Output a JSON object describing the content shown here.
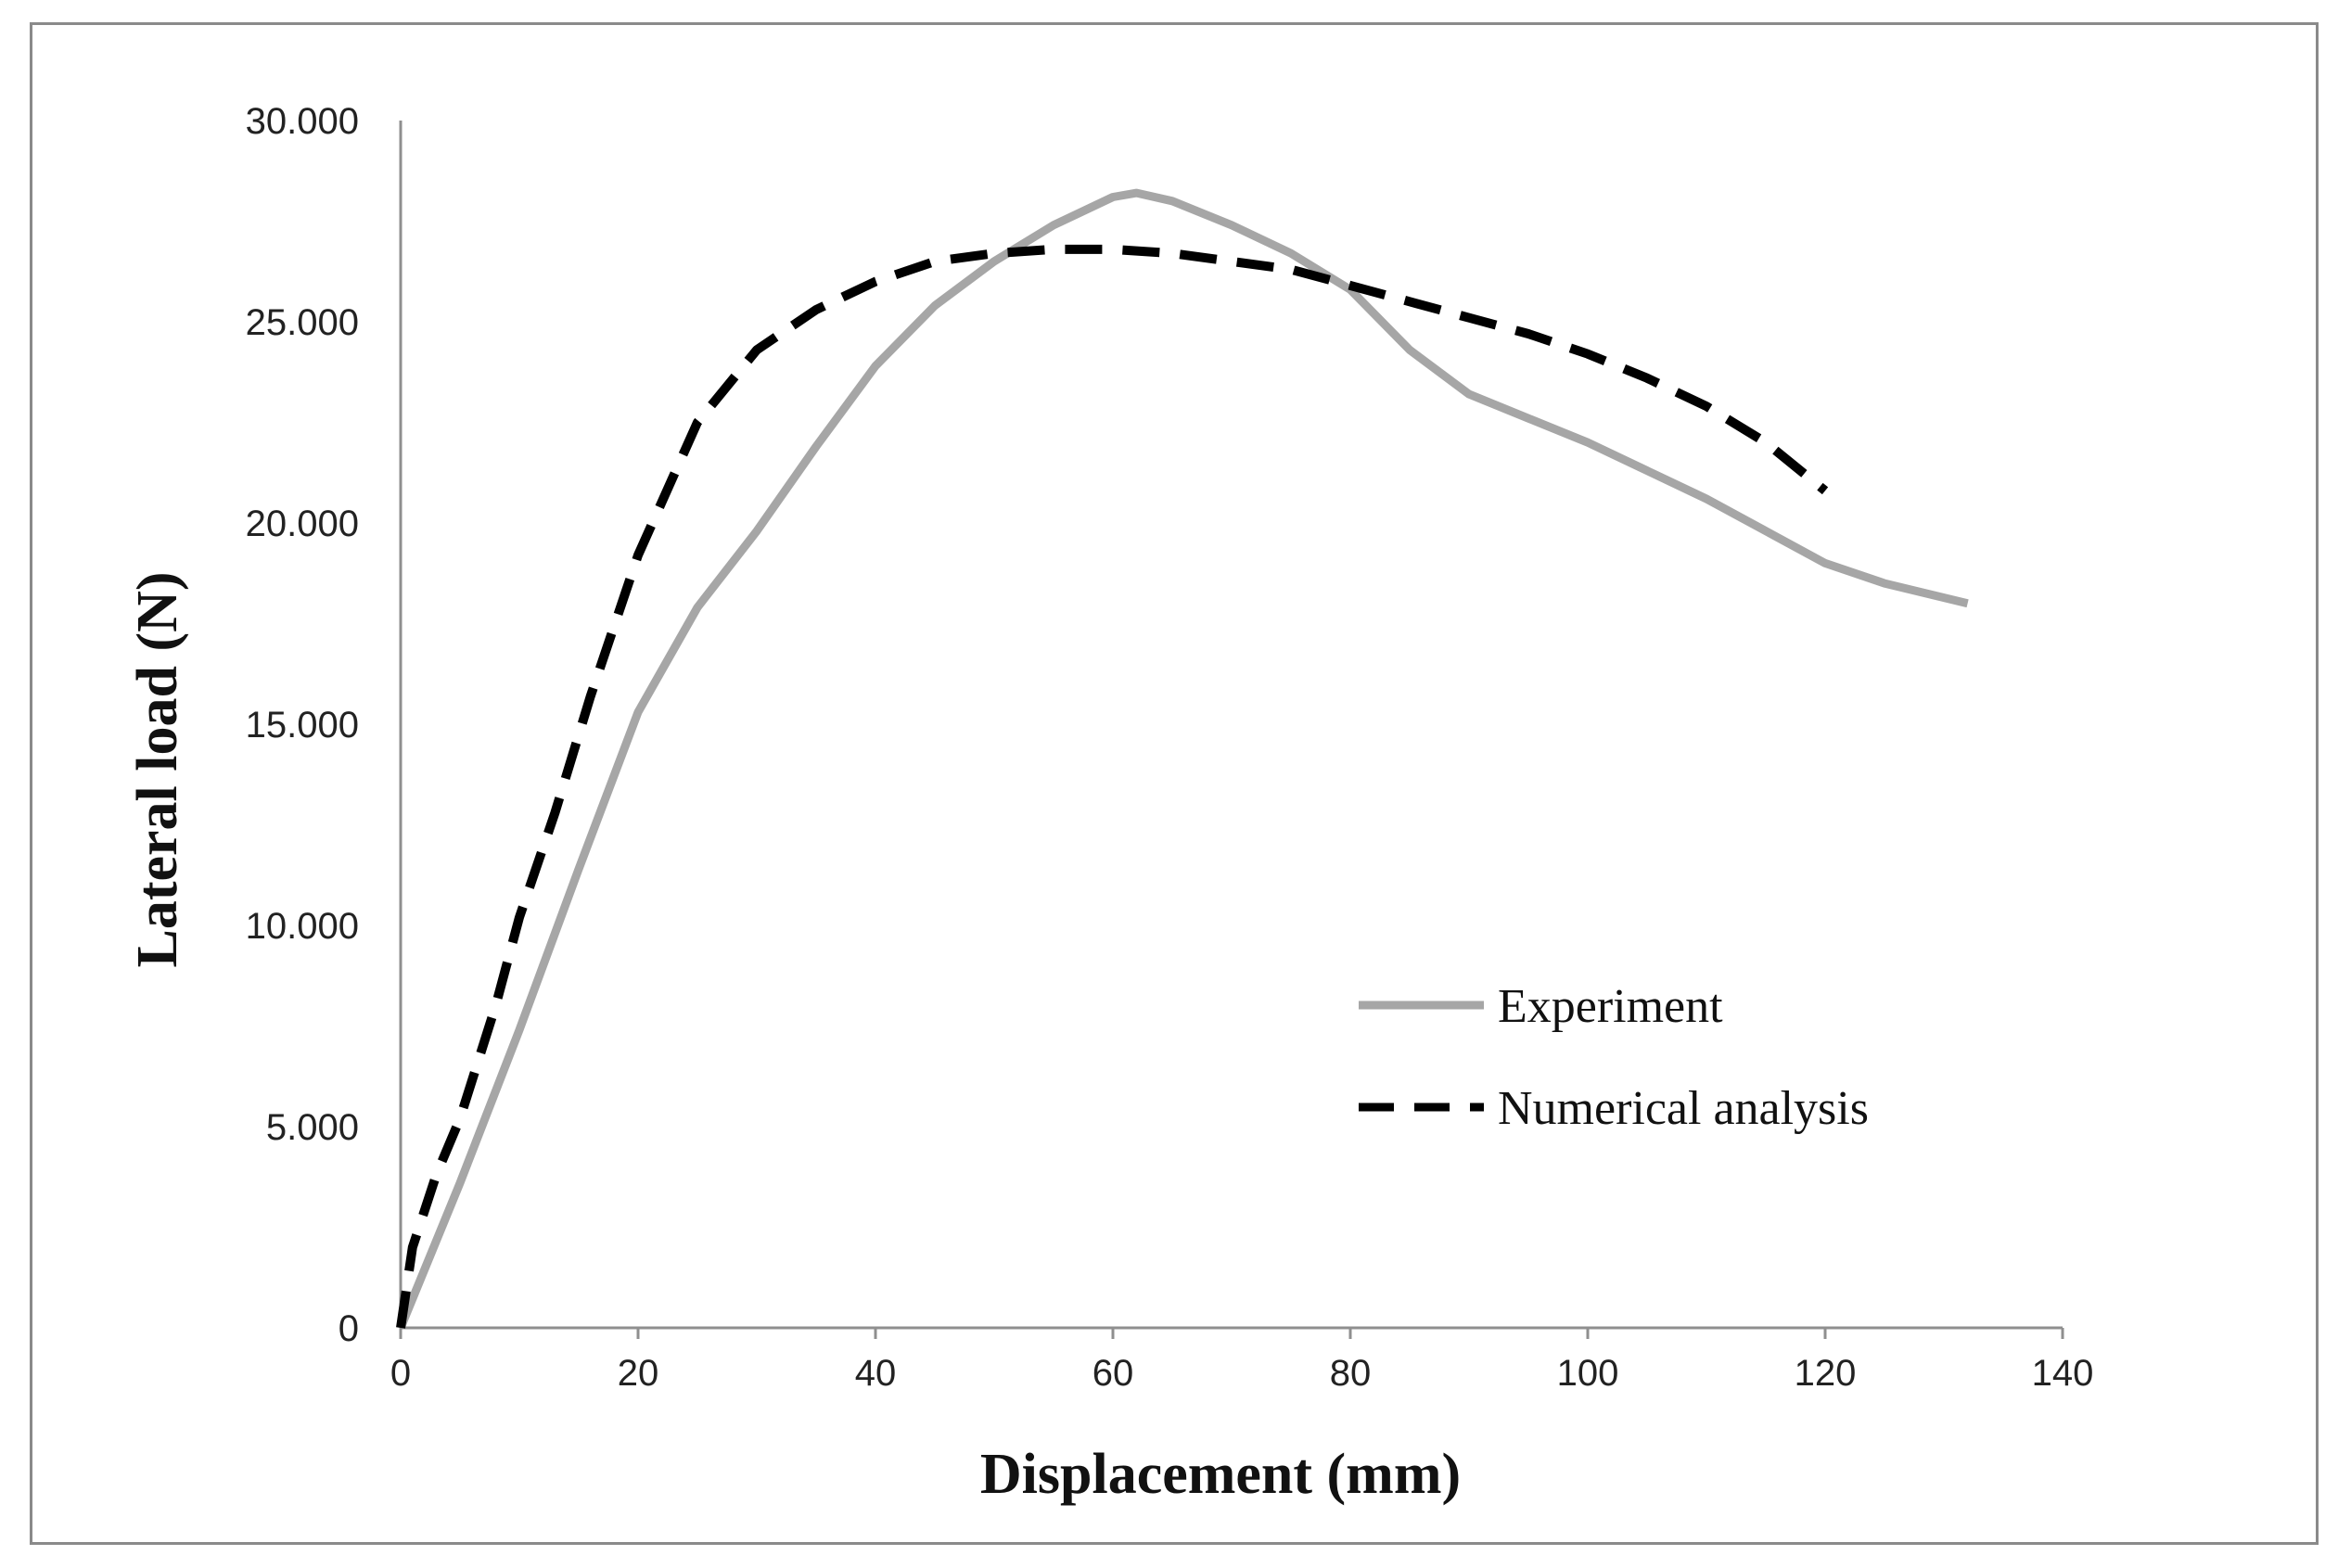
{
  "chart_data": {
    "type": "line",
    "title": "",
    "xlabel": "Displacement (mm)",
    "ylabel": "Lateral load (N)",
    "xlim": [
      0,
      140
    ],
    "ylim": [
      0,
      30000
    ],
    "x_ticks": [
      0,
      20,
      40,
      60,
      80,
      100,
      120,
      140
    ],
    "x_tick_labels": [
      "0",
      "20",
      "40",
      "60",
      "80",
      "100",
      "120",
      "140"
    ],
    "y_ticks": [
      0,
      5000,
      10000,
      15000,
      20000,
      25000,
      30000
    ],
    "y_tick_labels": [
      "0",
      "5.000",
      "10.000",
      "15.000",
      "20.000",
      "25.000",
      "30.000"
    ],
    "grid": false,
    "legend_position": "right",
    "series": [
      {
        "name": "Experiment",
        "color": "#a6a6a6",
        "style": "solid",
        "x": [
          0,
          5,
          10,
          15,
          20,
          25,
          30,
          35,
          40,
          45,
          50,
          55,
          60,
          62,
          65,
          70,
          75,
          80,
          85,
          90,
          95,
          100,
          105,
          110,
          115,
          120,
          125,
          132
        ],
        "y": [
          0,
          3600,
          7400,
          11400,
          15300,
          17900,
          19800,
          21900,
          23900,
          25400,
          26500,
          27400,
          28100,
          28200,
          28000,
          27400,
          26700,
          25800,
          24300,
          23200,
          22600,
          22000,
          21300,
          20600,
          19800,
          19000,
          18500,
          18000
        ]
      },
      {
        "name": "Numerical analysis",
        "color": "#000000",
        "style": "dashed",
        "x": [
          0,
          1,
          3,
          5,
          8,
          10,
          13,
          16,
          20,
          25,
          30,
          35,
          40,
          45,
          50,
          55,
          60,
          65,
          70,
          75,
          80,
          85,
          90,
          95,
          100,
          105,
          110,
          115,
          120
        ],
        "y": [
          0,
          2000,
          3800,
          5200,
          8000,
          10200,
          12800,
          15700,
          19200,
          22500,
          24300,
          25300,
          26000,
          26500,
          26700,
          26800,
          26800,
          26700,
          26500,
          26300,
          25900,
          25500,
          25100,
          24700,
          24200,
          23600,
          22900,
          22000,
          20800
        ]
      }
    ]
  }
}
